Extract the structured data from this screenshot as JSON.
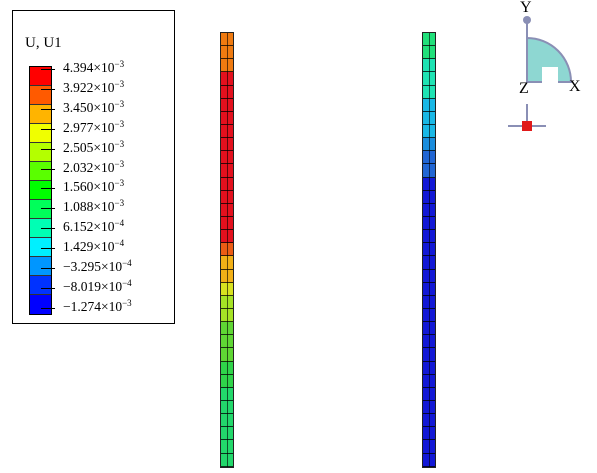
{
  "legend": {
    "title": "U, U1",
    "labels": [
      {
        "mantissa": "4.394",
        "exp": "−3"
      },
      {
        "mantissa": "3.922",
        "exp": "−3"
      },
      {
        "mantissa": "3.450",
        "exp": "−3"
      },
      {
        "mantissa": "2.977",
        "exp": "−3"
      },
      {
        "mantissa": "2.505",
        "exp": "−3"
      },
      {
        "mantissa": "2.032",
        "exp": "−3"
      },
      {
        "mantissa": "1.560",
        "exp": "−3"
      },
      {
        "mantissa": "1.088",
        "exp": "−3"
      },
      {
        "mantissa": "6.152",
        "exp": "−4"
      },
      {
        "mantissa": "1.429",
        "exp": "−4"
      },
      {
        "mantissa": "−3.295",
        "exp": "−4"
      },
      {
        "mantissa": "−8.019",
        "exp": "−4"
      },
      {
        "mantissa": "−1.274",
        "exp": "−3"
      }
    ],
    "times_sign": "×10",
    "colors": [
      "#ff0000",
      "#ff5a00",
      "#ffb400",
      "#f0ff00",
      "#b4ff00",
      "#5aff00",
      "#00ff00",
      "#00ff5a",
      "#00ffb4",
      "#00f0ff",
      "#0096ff",
      "#0032ff",
      "#0000ff"
    ]
  },
  "left_column": {
    "segments": [
      {
        "cells": 3,
        "color": "#ef7a10"
      },
      {
        "cells": 13,
        "color": "#e3101d"
      },
      {
        "cells": 1,
        "color": "#ec5c14"
      },
      {
        "cells": 2,
        "color": "#f2b016"
      },
      {
        "cells": 1,
        "color": "#d8e21f"
      },
      {
        "cells": 2,
        "color": "#a6e325"
      },
      {
        "cells": 3,
        "color": "#5fd634"
      },
      {
        "cells": 2,
        "color": "#2fd44a"
      },
      {
        "cells": 6,
        "color": "#22d86b"
      }
    ]
  },
  "right_column": {
    "segments": [
      {
        "cells": 2,
        "color": "#20e07a"
      },
      {
        "cells": 3,
        "color": "#1ee3b3"
      },
      {
        "cells": 3,
        "color": "#19b8e6"
      },
      {
        "cells": 1,
        "color": "#1a8ddd"
      },
      {
        "cells": 2,
        "color": "#2166d4"
      },
      {
        "cells": 22,
        "color": "#1218d6"
      }
    ]
  },
  "triad": {
    "y": "Y",
    "x": "X",
    "z": "Z",
    "quarter_fill": "#8ed7d2",
    "quarter_stroke": "#8a8fb5",
    "z_marker": "#e01a1a"
  }
}
